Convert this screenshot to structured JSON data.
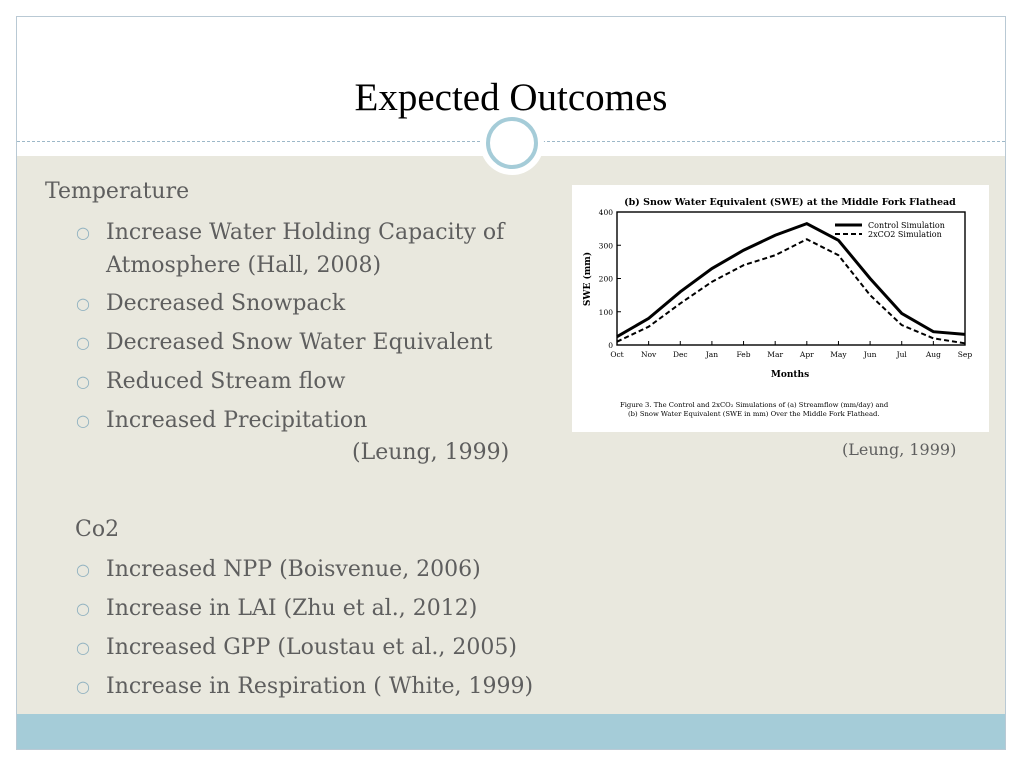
{
  "slide": {
    "title": "Expected Outcomes"
  },
  "temperature": {
    "heading": "Temperature",
    "bullets": [
      "Increase Water Holding Capacity of",
      "Atmosphere (Hall, 2008)",
      "Decreased Snowpack",
      "Decreased Snow Water Equivalent",
      "Reduced Stream flow",
      "Increased Precipitation"
    ],
    "citation": "(Leung, 1999)"
  },
  "co2": {
    "heading": "Co2",
    "bullets": [
      "Increased NPP (Boisvenue, 2006)",
      "Increase in LAI (Zhu et al., 2012)",
      "Increased GPP (Loustau et al., 2005)",
      "Increase in Respiration ( White, 1999)"
    ]
  },
  "figure": {
    "citation": "(Leung, 1999)",
    "caption_line1": "Figure 3. The Control and 2xCO₂ Simulations of (a) Streamflow (mm/day) and",
    "caption_line2": "(b) Snow Water Equivalent (SWE in mm) Over the Middle Fork Flathead."
  },
  "chart_data": {
    "type": "line",
    "title": "(b) Snow Water Equivalent (SWE) at the Middle Fork Flathead",
    "xlabel": "Months",
    "ylabel": "SWE (mm)",
    "categories": [
      "Oct",
      "Nov",
      "Dec",
      "Jan",
      "Feb",
      "Mar",
      "Apr",
      "May",
      "Jun",
      "Jul",
      "Aug",
      "Sep"
    ],
    "ylim": [
      0,
      400
    ],
    "yticks": [
      "0",
      "100",
      "200",
      "300",
      "400"
    ],
    "series": [
      {
        "name": "Control Simulation",
        "style": "solid",
        "values": [
          25,
          80,
          160,
          230,
          285,
          330,
          365,
          315,
          200,
          95,
          40,
          32
        ]
      },
      {
        "name": "2xCO2 Simulation",
        "style": "dashed",
        "values": [
          10,
          55,
          125,
          190,
          240,
          270,
          318,
          270,
          150,
          60,
          20,
          5
        ]
      }
    ],
    "legend_position": "top-right",
    "grid": false
  },
  "colors": {
    "content_bg": "#e9e8de",
    "footer_bar": "#a5ccd8",
    "bullet_mark": "#93b3c1",
    "text": "#5e5e5e"
  },
  "icons": {
    "bullet": "hollow-circle-bullet",
    "title_ornament": "ring-ornament"
  }
}
